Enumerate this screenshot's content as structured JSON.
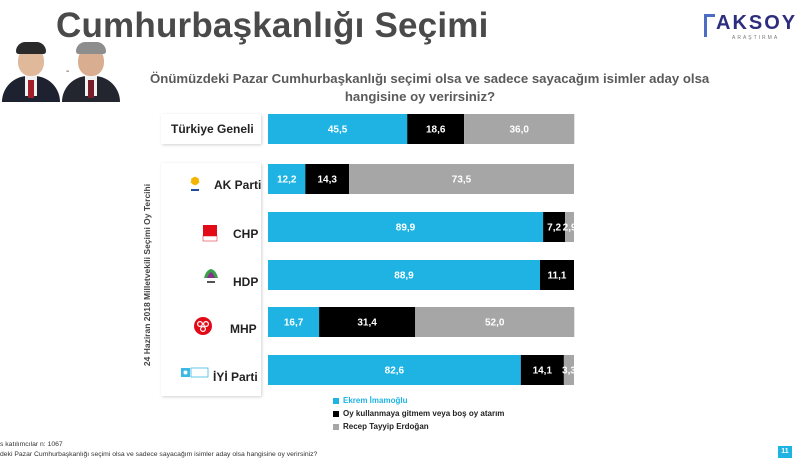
{
  "header": {
    "title": "Cumhurbaşkanlığı Seçimi",
    "logo_name": "AKSOY",
    "logo_sub": "ARAŞTIRMA"
  },
  "question": {
    "line1": "Önümüzdeki Pazar Cumhurbaşkanlığı seçimi olsa ve sadece sayacağım isimler aday olsa",
    "line2": "hangisine oy verirsiniz?"
  },
  "side_label": "24 Haziran 2018 Milletvekili Seçimi Oy Tercihi",
  "rows": [
    {
      "label": "Türkiye Geneli",
      "icon": "none"
    },
    {
      "label": "AK Parti",
      "icon": "ak-parti-logo-icon"
    },
    {
      "label": "CHP",
      "icon": "chp-logo-icon"
    },
    {
      "label": "HDP",
      "icon": "hdp-logo-icon"
    },
    {
      "label": "MHP",
      "icon": "mhp-logo-icon"
    },
    {
      "label": "İYİ Parti",
      "icon": "iyi-parti-logo-icon"
    }
  ],
  "chart_data": {
    "type": "bar",
    "orientation": "horizontal",
    "stacked": true,
    "categories": [
      "Türkiye Geneli",
      "AK Parti",
      "CHP",
      "HDP",
      "MHP",
      "İYİ Parti"
    ],
    "series": [
      {
        "name": "Ekrem İmamoğlu",
        "color": "#1fb3e4",
        "values": [
          45.5,
          12.2,
          89.9,
          88.9,
          16.7,
          82.6
        ]
      },
      {
        "name": "Oy kullanmaya gitmem veya boş oy atarım",
        "color": "#000000",
        "values": [
          18.6,
          14.3,
          7.2,
          11.1,
          31.4,
          14.1
        ]
      },
      {
        "name": "Recep Tayyip Erdoğan",
        "color": "#a6a6a6",
        "values": [
          36.0,
          73.5,
          2.9,
          0,
          52.0,
          3.3
        ]
      }
    ],
    "value_labels": [
      [
        "45,5",
        "18,6",
        "36,0"
      ],
      [
        "12,2",
        "14,3",
        "73,5"
      ],
      [
        "89,9",
        "7,2",
        "2,9"
      ],
      [
        "88,9",
        "11,1",
        ""
      ],
      [
        "16,7",
        "31,4",
        "52,0"
      ],
      [
        "82,6",
        "14,1",
        "3,3"
      ]
    ],
    "xlim": [
      0,
      100
    ],
    "legend_position": "bottom"
  },
  "footer": {
    "line1": "s katılımcılar n: 1067",
    "line2": "deki Pazar Cumhurbaşkanlığı seçimi olsa ve sadece sayacağım isimler aday olsa hangisine oy verirsiniz?",
    "page_number": "11"
  }
}
